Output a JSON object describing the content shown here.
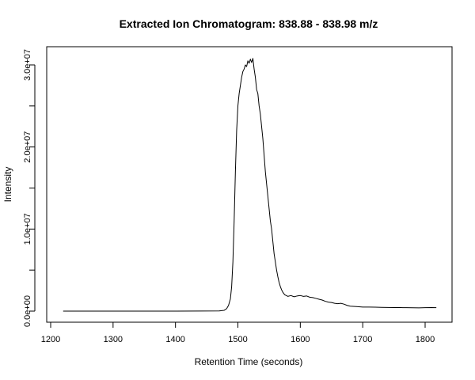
{
  "chart_data": {
    "type": "line",
    "title": "Extracted Ion Chromatogram: 838.88 - 838.98 m/z",
    "xlabel": "Retention Time (seconds)",
    "ylabel": "Intensity",
    "xlim": [
      1220,
      1820
    ],
    "ylim": [
      0,
      30800000
    ],
    "x_ticks": [
      1200,
      1300,
      1400,
      1500,
      1600,
      1700,
      1800
    ],
    "x_tick_labels": [
      "1200",
      "1300",
      "1400",
      "1500",
      "1600",
      "1700",
      "1800"
    ],
    "y_ticks": [
      0,
      5000000,
      10000000,
      15000000,
      20000000,
      25000000,
      30000000
    ],
    "y_tick_labels": [
      "0.0e+00",
      "",
      "1.0e+07",
      "",
      "2.0e+07",
      "",
      "3.0e+07"
    ],
    "grid": false,
    "line_color": "#000000",
    "series": [
      {
        "x": [
          1220,
          1300,
          1400,
          1470,
          1478,
          1482,
          1485,
          1488,
          1490,
          1492,
          1494,
          1496,
          1498,
          1500,
          1502,
          1504,
          1506,
          1508,
          1510,
          1512,
          1514,
          1516,
          1518,
          1520,
          1522,
          1524,
          1526,
          1528,
          1530,
          1532,
          1534,
          1536,
          1538,
          1540,
          1542,
          1544,
          1546,
          1548,
          1550,
          1552,
          1554,
          1556,
          1558,
          1560,
          1562,
          1564,
          1566,
          1568,
          1570,
          1572,
          1575,
          1580,
          1585,
          1590,
          1595,
          1600,
          1605,
          1610,
          1615,
          1620,
          1625,
          1630,
          1635,
          1640,
          1645,
          1650,
          1655,
          1660,
          1665,
          1670,
          1675,
          1680,
          1690,
          1700,
          1710,
          1720,
          1730,
          1740,
          1750,
          1760,
          1770,
          1780,
          1790,
          1800,
          1810,
          1818
        ],
        "y": [
          0,
          0,
          0,
          20000,
          100000,
          300000,
          700000,
          1500000,
          3000000,
          6000000,
          11000000,
          17000000,
          22000000,
          25000000,
          26500000,
          27500000,
          28500000,
          29200000,
          29500000,
          30000000,
          29800000,
          30500000,
          30200000,
          30700000,
          30300000,
          30800000,
          29500000,
          28500000,
          27000000,
          26500000,
          25000000,
          24000000,
          22500000,
          21000000,
          19000000,
          17000000,
          15500000,
          14000000,
          12500000,
          11000000,
          10000000,
          8500000,
          7000000,
          6000000,
          5000000,
          4200000,
          3500000,
          3000000,
          2600000,
          2300000,
          2000000,
          1800000,
          1900000,
          1750000,
          1850000,
          1900000,
          1800000,
          1850000,
          1700000,
          1650000,
          1550000,
          1450000,
          1350000,
          1200000,
          1100000,
          1050000,
          950000,
          900000,
          950000,
          850000,
          700000,
          600000,
          550000,
          500000,
          500000,
          480000,
          460000,
          450000,
          440000,
          430000,
          420000,
          410000,
          400000,
          420000,
          430000,
          420000
        ]
      }
    ]
  }
}
